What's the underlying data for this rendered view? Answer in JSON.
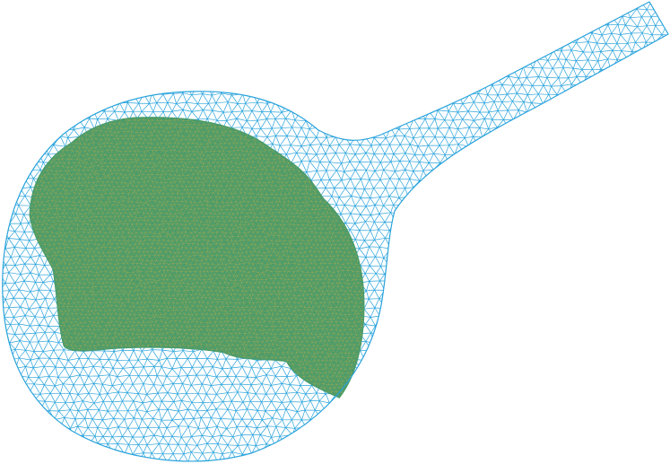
{
  "figure": {
    "description_free": true,
    "colors": {
      "background": "#ffffff",
      "mesh": "#29a3dc",
      "fill_region": "#4a9b6a",
      "fill_mesh": "#c9b24a"
    }
  }
}
